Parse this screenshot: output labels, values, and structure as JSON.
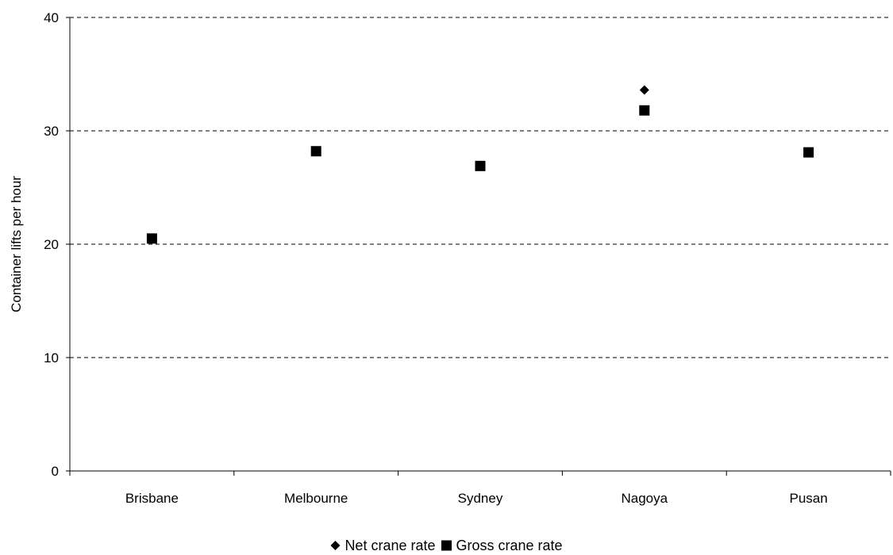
{
  "chart_data": {
    "type": "scatter",
    "categories": [
      "Brisbane",
      "Melbourne",
      "Sydney",
      "Nagoya",
      "Pusan"
    ],
    "series": [
      {
        "name": "Net crane rate",
        "marker": "diamond",
        "color": "#000000",
        "values": [
          20.5,
          28.2,
          26.9,
          33.6,
          28.1
        ]
      },
      {
        "name": "Gross crane rate",
        "marker": "square",
        "color": "#000000",
        "values": [
          20.5,
          28.2,
          26.9,
          31.8,
          28.1
        ]
      }
    ],
    "title": "",
    "xlabel": "",
    "ylabel": "Container lifts per hour",
    "ylim": [
      0,
      40
    ],
    "yticks": [
      0,
      10,
      20,
      30,
      40
    ],
    "grid": "horizontal-dashed",
    "legend_position": "bottom"
  }
}
